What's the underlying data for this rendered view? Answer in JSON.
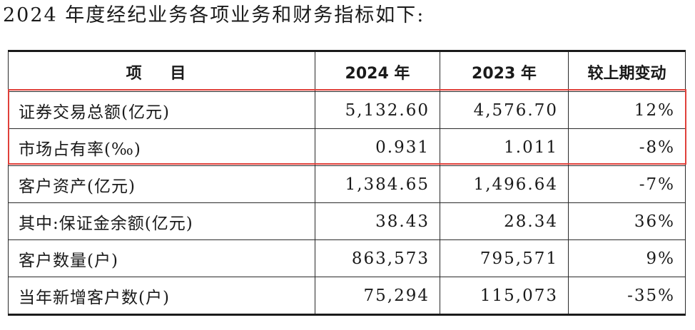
{
  "intro_text": "2024 年度经纪业务各项业务和财务指标如下:",
  "table": {
    "headers": [
      "项 目",
      "2024 年",
      "2023 年",
      "较上期变动"
    ],
    "rows": [
      [
        "证券交易总额(亿元)",
        "5,132.60",
        "4,576.70",
        "12%"
      ],
      [
        "市场占有率(‰)",
        "0.931",
        "1.011",
        "-8%"
      ],
      [
        "客户资产(亿元)",
        "1,384.65",
        "1,496.64",
        "-7%"
      ],
      [
        "其中:保证金余额(亿元)",
        "38.43",
        "28.34",
        "36%"
      ],
      [
        "客户数量(户)",
        "863,573",
        "795,571",
        "9%"
      ],
      [
        "当年新增客户数(户)",
        "75,294",
        "115,073",
        "-35%"
      ]
    ]
  },
  "highlight_color": "#e0403a"
}
